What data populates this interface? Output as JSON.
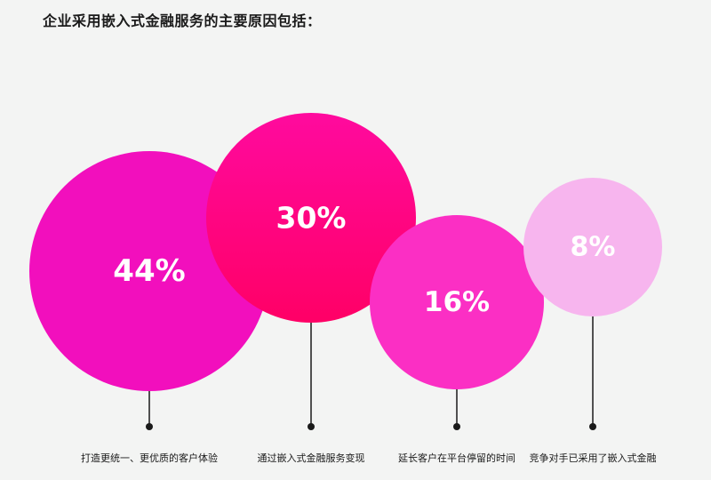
{
  "title": "企业采用嵌入式金融服务的主要原因包括：",
  "chart_data": {
    "type": "bubble",
    "categories": [
      "打造更统一、更优质的客户体验",
      "通过嵌入式金融服务变现",
      "延长客户在平台停留的时间",
      "竞争对手已采用了嵌入式金融"
    ],
    "values": [
      44,
      30,
      16,
      8
    ],
    "value_labels": [
      "44%",
      "30%",
      "16%",
      "8%"
    ],
    "unit": "%",
    "colors": [
      "#f20fbd",
      "#ff0a8c",
      "#fb2fc4",
      "#f7b5ee"
    ],
    "legend": "none",
    "grid": false
  }
}
